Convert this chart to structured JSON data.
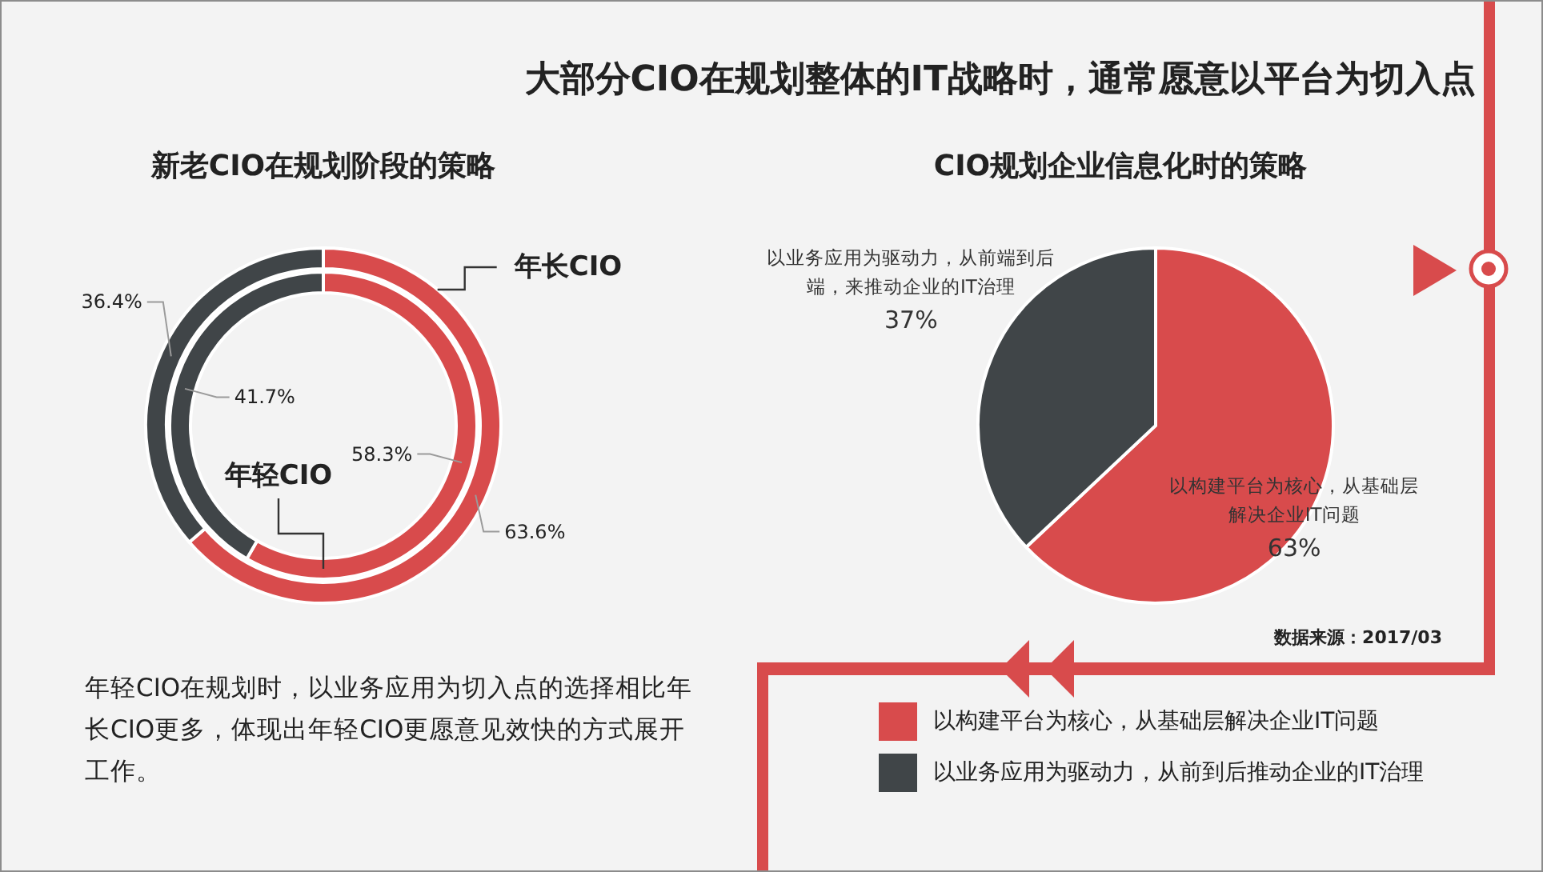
{
  "chart_data": [
    {
      "type": "donut",
      "title": "新老CIO在规划阶段的策略",
      "categories": [
        "以构建平台为核心，从基础层解决企业IT问题",
        "以业务应用为驱动力，从前到后推动企业的IT治理"
      ],
      "colors": [
        "#d84b4c",
        "#404548"
      ],
      "series": [
        {
          "name": "年长CIO",
          "values": [
            63.6,
            36.4
          ],
          "value_labels": [
            "63.6%",
            "36.4%"
          ]
        },
        {
          "name": "年轻CIO",
          "values": [
            58.3,
            41.7
          ],
          "value_labels": [
            "58.3%",
            "41.7%"
          ]
        }
      ],
      "legend": "bottom right",
      "annotations": [
        "年轻CIO在规划时，以业务应用为切入点的选择相比年长CIO更多，体现出年轻CIO更愿意见效快的方式展开工作。"
      ]
    },
    {
      "type": "pie",
      "title": "大部分CIO在规划整体的IT战略时，通常愿意以平台为切入点",
      "subtitle": "CIO规划企业信息化时的策略",
      "categories": [
        "以构建平台为核心，从基础层解决企业IT问题",
        "以业务应用为驱动力，从前端到后端，来推动企业的IT治理"
      ],
      "values": [
        63,
        37
      ],
      "colors": [
        "#d84b4c",
        "#404548"
      ],
      "value_labels": [
        "63%",
        "37%"
      ],
      "annotations": [
        "数据来源：2017/03"
      ]
    }
  ]
}
